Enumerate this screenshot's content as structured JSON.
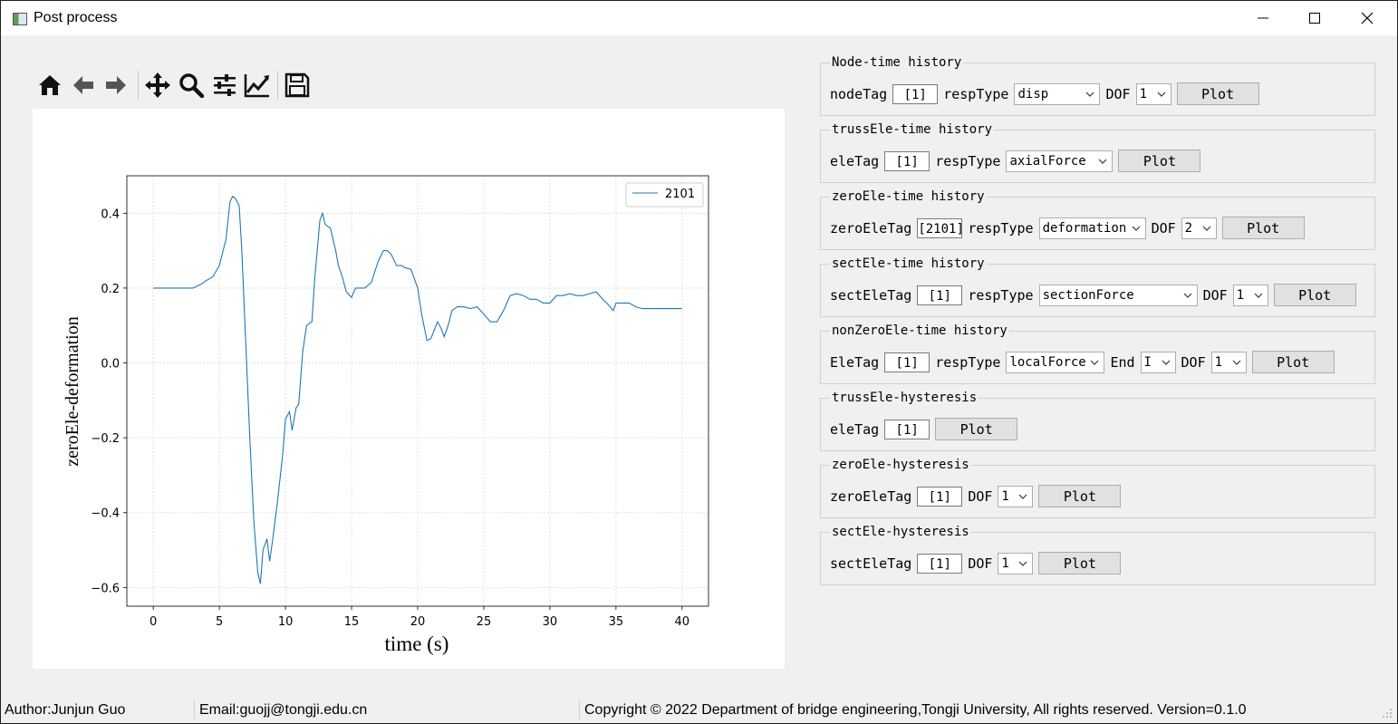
{
  "window": {
    "title": "Post process"
  },
  "icons": {
    "app": "app-icon",
    "minimize": "minimize-icon",
    "maximize": "maximize-icon",
    "close": "close-icon",
    "toolbar": [
      "home-icon",
      "back-arrow-icon",
      "forward-arrow-icon",
      "pan-icon",
      "zoom-icon",
      "configure-subplots-icon",
      "edit-axes-icon",
      "save-icon"
    ]
  },
  "colors": {
    "line": "#1f77b4",
    "panel_bg": "#f0f0f0",
    "button_bg": "#e1e1e1"
  },
  "panels": [
    {
      "title": "Node-time history",
      "tag_label": "nodeTag",
      "tag_value": "[1]",
      "resp_label": "respType",
      "resp_value": "disp",
      "dof_label": "DOF",
      "dof_value": "1",
      "plot": "Plot"
    },
    {
      "title": "trussEle-time history",
      "tag_label": "eleTag",
      "tag_value": "[1]",
      "resp_label": "respType",
      "resp_value": "axialForce",
      "plot": "Plot"
    },
    {
      "title": "zeroEle-time history",
      "tag_label": "zeroEleTag",
      "tag_value": "[2101]",
      "resp_label": "respType",
      "resp_value": "deformation",
      "dof_label": "DOF",
      "dof_value": "2",
      "plot": "Plot"
    },
    {
      "title": "sectEle-time history",
      "tag_label": "sectEleTag",
      "tag_value": "[1]",
      "resp_label": "respType",
      "resp_value": "sectionForce",
      "dof_label": "DOF",
      "dof_value": "1",
      "plot": "Plot"
    },
    {
      "title": "nonZeroEle-time history",
      "tag_label": "EleTag",
      "tag_value": "[1]",
      "resp_label": "respType",
      "resp_value": "localForce",
      "end_label": "End",
      "end_value": "I",
      "dof_label": "DOF",
      "dof_value": "1",
      "plot": "Plot"
    },
    {
      "title": "trussEle-hysteresis",
      "tag_label": "eleTag",
      "tag_value": "[1]",
      "plot": "Plot"
    },
    {
      "title": "zeroEle-hysteresis",
      "tag_label": "zeroEleTag",
      "tag_value": "[1]",
      "dof_label": "DOF",
      "dof_value": "1",
      "plot": "Plot"
    },
    {
      "title": "sectEle-hysteresis",
      "tag_label": "sectEleTag",
      "tag_value": "[1]",
      "dof_label": "DOF",
      "dof_value": "1",
      "plot": "Plot"
    }
  ],
  "status": {
    "author": "Author:Junjun Guo",
    "email": "Email:guojj@tongji.edu.cn",
    "copyright": "Copyright © 2022 Department of bridge engineering,Tongji University, All rights reserved.  Version=0.1.0"
  },
  "chart_data": {
    "type": "line",
    "title": "",
    "xlabel": "time (s)",
    "ylabel": "zeroEle-deformation",
    "xlim": [
      -2,
      42
    ],
    "ylim": [
      -0.65,
      0.5
    ],
    "xticks": [
      0,
      5,
      10,
      15,
      20,
      25,
      30,
      35,
      40
    ],
    "yticks": [
      -0.6,
      -0.4,
      -0.2,
      0.0,
      0.2,
      0.4
    ],
    "xtick_labels": [
      "0",
      "5",
      "10",
      "15",
      "20",
      "25",
      "30",
      "35",
      "40"
    ],
    "ytick_labels": [
      "−0.6",
      "−0.4",
      "−0.2",
      "0.0",
      "0.2",
      "0.4"
    ],
    "grid": true,
    "legend": "top-right",
    "series": [
      {
        "name": "2101",
        "x": [
          0,
          1,
          2,
          3,
          3.6,
          4,
          4.5,
          5,
          5.5,
          5.8,
          6,
          6.2,
          6.5,
          6.7,
          7,
          7.3,
          7.6,
          7.9,
          8.1,
          8.3,
          8.6,
          8.8,
          9,
          9.4,
          9.8,
          10,
          10.3,
          10.5,
          10.8,
          11,
          11.3,
          11.6,
          12,
          12.2,
          12.4,
          12.6,
          12.8,
          13,
          13.4,
          13.8,
          14,
          14.3,
          14.6,
          15,
          15.3,
          15.6,
          16,
          16.5,
          17,
          17.4,
          17.7,
          18,
          18.4,
          18.8,
          19,
          19.5,
          20,
          20.3,
          20.7,
          21,
          21.5,
          21.8,
          22,
          22.3,
          22.6,
          23,
          23.5,
          24,
          24.5,
          25,
          25.5,
          26,
          26.5,
          27,
          27.5,
          28,
          28.5,
          29,
          29.5,
          30,
          30.5,
          31,
          31.5,
          32,
          32.5,
          33,
          33.5,
          34,
          34.3,
          34.8,
          35,
          35.5,
          36,
          36.5,
          37,
          38,
          39,
          40
        ],
        "values": [
          0.2,
          0.2,
          0.2,
          0.2,
          0.21,
          0.22,
          0.23,
          0.26,
          0.33,
          0.43,
          0.445,
          0.44,
          0.42,
          0.3,
          0.05,
          -0.2,
          -0.42,
          -0.56,
          -0.59,
          -0.5,
          -0.47,
          -0.53,
          -0.48,
          -0.37,
          -0.24,
          -0.15,
          -0.13,
          -0.18,
          -0.12,
          -0.11,
          0.03,
          0.1,
          0.11,
          0.22,
          0.3,
          0.38,
          0.4,
          0.37,
          0.36,
          0.3,
          0.26,
          0.23,
          0.19,
          0.175,
          0.2,
          0.2,
          0.2,
          0.215,
          0.27,
          0.3,
          0.3,
          0.29,
          0.26,
          0.26,
          0.255,
          0.25,
          0.2,
          0.13,
          0.06,
          0.065,
          0.11,
          0.09,
          0.07,
          0.1,
          0.14,
          0.15,
          0.15,
          0.145,
          0.15,
          0.13,
          0.11,
          0.11,
          0.14,
          0.18,
          0.185,
          0.18,
          0.17,
          0.17,
          0.16,
          0.16,
          0.18,
          0.18,
          0.185,
          0.18,
          0.18,
          0.185,
          0.19,
          0.17,
          0.16,
          0.14,
          0.16,
          0.16,
          0.16,
          0.15,
          0.145,
          0.145,
          0.145,
          0.145
        ]
      }
    ]
  }
}
